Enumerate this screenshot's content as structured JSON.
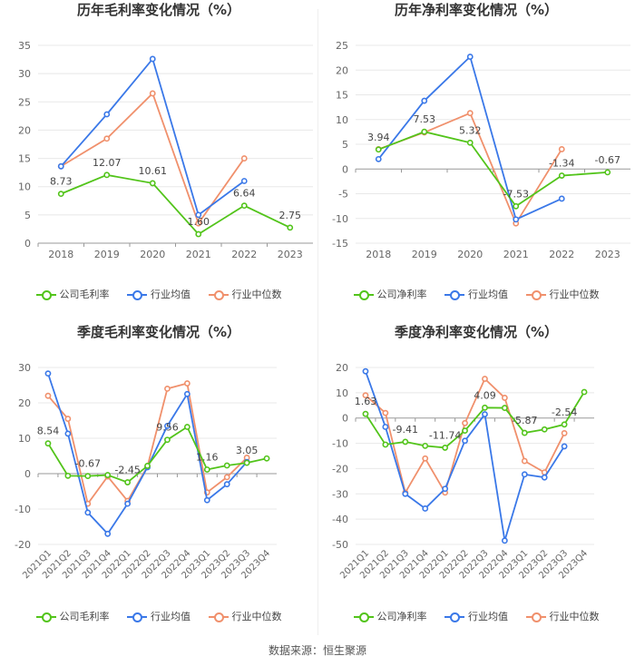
{
  "source": "数据来源：恒生聚源",
  "colors": {
    "company": "#52c41a",
    "industry_avg": "#3a78e8",
    "industry_median": "#f0906c"
  },
  "chart_data": [
    {
      "type": "line",
      "title": "历年毛利率变化情况（%）",
      "categories": [
        "2018",
        "2019",
        "2020",
        "2021",
        "2022",
        "2023"
      ],
      "ylim": [
        0,
        35
      ],
      "yticks": [
        0,
        5,
        10,
        15,
        20,
        25,
        30,
        35
      ],
      "rotate_x": false,
      "series": [
        {
          "name": "公司毛利率",
          "key": "company",
          "values": [
            8.73,
            12.07,
            10.61,
            1.6,
            6.64,
            2.75
          ],
          "labels": [
            "8.73",
            "12.07",
            "10.61",
            "1.60",
            "6.64",
            "2.75"
          ]
        },
        {
          "name": "行业均值",
          "key": "industry_avg",
          "values": [
            13.6,
            22.8,
            32.6,
            5.0,
            11.0,
            null
          ]
        },
        {
          "name": "行业中位数",
          "key": "industry_median",
          "values": [
            13.6,
            18.5,
            26.5,
            3.5,
            15.0,
            null
          ]
        }
      ]
    },
    {
      "type": "line",
      "title": "历年净利率变化情况（%）",
      "categories": [
        "2018",
        "2019",
        "2020",
        "2021",
        "2022",
        "2023"
      ],
      "ylim": [
        -15,
        25
      ],
      "yticks": [
        -15,
        -10,
        -5,
        0,
        5,
        10,
        15,
        20,
        25
      ],
      "rotate_x": false,
      "series": [
        {
          "name": "公司净利率",
          "key": "company",
          "values": [
            3.94,
            7.53,
            5.32,
            -7.53,
            -1.34,
            -0.67
          ],
          "labels": [
            "3.94",
            "7.53",
            "5.32",
            "-7.53",
            "-1.34",
            "-0.67"
          ]
        },
        {
          "name": "行业均值",
          "key": "industry_avg",
          "values": [
            2.0,
            13.8,
            22.7,
            -10.2,
            -6.0,
            null
          ]
        },
        {
          "name": "行业中位数",
          "key": "industry_median",
          "values": [
            4.0,
            7.4,
            11.3,
            -11.0,
            4.0,
            null
          ]
        }
      ]
    },
    {
      "type": "line",
      "title": "季度毛利率变化情况（%）",
      "categories": [
        "2021Q1",
        "2021Q2",
        "2021Q3",
        "2021Q4",
        "2022Q1",
        "2022Q2",
        "2022Q3",
        "2022Q4",
        "2023Q1",
        "2023Q2",
        "2023Q3",
        "2023Q4"
      ],
      "ylim": [
        -20,
        30
      ],
      "yticks": [
        -20,
        -10,
        0,
        10,
        20,
        30
      ],
      "rotate_x": true,
      "series": [
        {
          "name": "公司毛利率",
          "key": "company",
          "values": [
            8.54,
            -0.6,
            -0.67,
            -0.4,
            -2.45,
            2.2,
            9.56,
            13.2,
            1.16,
            2.3,
            3.05,
            4.3
          ],
          "labels": [
            "8.54",
            null,
            "-0.67",
            null,
            "-2.45",
            null,
            "9.56",
            null,
            "1.16",
            null,
            "3.05",
            null
          ]
        },
        {
          "name": "行业均值",
          "key": "industry_avg",
          "values": [
            28.3,
            11.3,
            -11.0,
            -17.0,
            -8.5,
            1.8,
            13.5,
            22.5,
            -7.5,
            -3.0,
            3.3,
            null
          ]
        },
        {
          "name": "行业中位数",
          "key": "industry_median",
          "values": [
            22.0,
            15.5,
            -8.5,
            -0.8,
            -7.7,
            2.0,
            24.0,
            25.5,
            -5.3,
            -1.0,
            4.5,
            null
          ]
        }
      ]
    },
    {
      "type": "line",
      "title": "季度净利率变化情况（%）",
      "categories": [
        "2021Q1",
        "2021Q2",
        "2021Q3",
        "2021Q4",
        "2022Q1",
        "2022Q2",
        "2022Q3",
        "2022Q4",
        "2023Q1",
        "2023Q2",
        "2023Q3",
        "2023Q4"
      ],
      "ylim": [
        -50,
        20
      ],
      "yticks": [
        -50,
        -40,
        -30,
        -20,
        -10,
        0,
        10,
        20
      ],
      "rotate_x": true,
      "series": [
        {
          "name": "公司净利率",
          "key": "company",
          "values": [
            1.63,
            -10.5,
            -9.41,
            -11.0,
            -11.74,
            -5.0,
            4.09,
            4.0,
            -5.87,
            -4.5,
            -2.54,
            10.3
          ],
          "labels": [
            "1.63",
            null,
            "-9.41",
            null,
            "-11.74",
            null,
            "4.09",
            null,
            "-5.87",
            null,
            "-2.54",
            null
          ]
        },
        {
          "name": "行业均值",
          "key": "industry_avg",
          "values": [
            18.5,
            -3.5,
            -30.0,
            -35.8,
            -28.0,
            -9.0,
            1.5,
            -48.5,
            -22.3,
            -23.5,
            -11.2,
            null
          ]
        },
        {
          "name": "行业中位数",
          "key": "industry_median",
          "values": [
            9.0,
            2.0,
            -29.5,
            -16.0,
            -29.5,
            -2.0,
            15.5,
            8.0,
            -17.0,
            -21.5,
            -6.0,
            null
          ]
        }
      ]
    }
  ]
}
